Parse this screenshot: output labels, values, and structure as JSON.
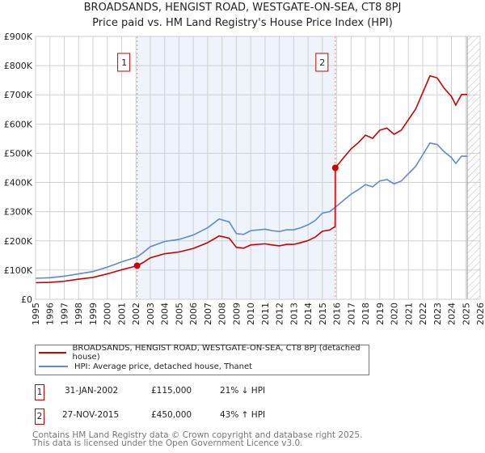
{
  "chart_data": {
    "type": "line",
    "title": "BROADSANDS, HENGIST ROAD, WESTGATE-ON-SEA, CT8 8PJ",
    "subtitle": "Price paid vs. HM Land Registry's House Price Index (HPI)",
    "xlim": [
      1995,
      2026
    ],
    "ylim": [
      0,
      900000
    ],
    "x_ticks": [
      1995,
      1996,
      1997,
      1998,
      1999,
      2000,
      2001,
      2002,
      2003,
      2004,
      2005,
      2006,
      2007,
      2008,
      2009,
      2010,
      2011,
      2012,
      2013,
      2014,
      2015,
      2016,
      2017,
      2018,
      2019,
      2020,
      2021,
      2022,
      2023,
      2024,
      2025,
      2026
    ],
    "y_ticks": [
      {
        "v": 0,
        "label": "£0"
      },
      {
        "v": 100000,
        "label": "£100K"
      },
      {
        "v": 200000,
        "label": "£200K"
      },
      {
        "v": 300000,
        "label": "£300K"
      },
      {
        "v": 400000,
        "label": "£400K"
      },
      {
        "v": 500000,
        "label": "£500K"
      },
      {
        "v": 600000,
        "label": "£600K"
      },
      {
        "v": 700000,
        "label": "£700K"
      },
      {
        "v": 800000,
        "label": "£800K"
      },
      {
        "v": 900000,
        "label": "£900K"
      }
    ],
    "grid": true,
    "shaded_range": [
      2002.08,
      2015.9
    ],
    "hatched_range": [
      2025.1,
      2026
    ],
    "series": [
      {
        "name": "BROADSANDS, HENGIST ROAD, WESTGATE-ON-SEA, CT8 8PJ (detached house)",
        "color": "#cc0000",
        "x": [
          1995,
          1996,
          1997,
          1998,
          1999,
          2000,
          2001,
          2002.08,
          2002.5,
          2003,
          2004,
          2005,
          2006,
          2007,
          2007.8,
          2008.5,
          2009,
          2009.5,
          2010,
          2011,
          2011.5,
          2012,
          2012.5,
          2013,
          2013.5,
          2014,
          2014.5,
          2015,
          2015.5,
          2015.89,
          2015.9,
          2016.5,
          2017,
          2017.5,
          2018,
          2018.5,
          2019,
          2019.5,
          2020,
          2020.5,
          2021,
          2021.5,
          2022,
          2022.5,
          2023,
          2023.5,
          2024,
          2024.3,
          2024.7,
          2025.1
        ],
        "y": [
          57000,
          58000,
          62000,
          69000,
          75000,
          87000,
          101000,
          115000,
          126000,
          142000,
          156000,
          162000,
          174000,
          194000,
          217000,
          209000,
          178000,
          175000,
          186000,
          190000,
          186000,
          183000,
          188000,
          188000,
          194000,
          201000,
          213000,
          233000,
          237000,
          249000,
          450000,
          486000,
          515000,
          536000,
          562000,
          551000,
          579000,
          586000,
          565000,
          579000,
          615000,
          651000,
          708000,
          765000,
          758000,
          722000,
          694000,
          665000,
          701000,
          701000
        ]
      },
      {
        "name": "HPI: Average price, detached house, Thanet",
        "color": "#5b8bd0",
        "x": [
          1995,
          1996,
          1997,
          1998,
          1999,
          2000,
          2001,
          2002.08,
          2002.5,
          2003,
          2004,
          2005,
          2006,
          2007,
          2007.8,
          2008.5,
          2009,
          2009.5,
          2010,
          2011,
          2011.5,
          2012,
          2012.5,
          2013,
          2013.5,
          2014,
          2014.5,
          2015,
          2015.5,
          2015.9,
          2016.5,
          2017,
          2017.5,
          2018,
          2018.5,
          2019,
          2019.5,
          2020,
          2020.5,
          2021,
          2021.5,
          2022,
          2022.5,
          2023,
          2023.5,
          2024,
          2024.3,
          2024.7,
          2025.1
        ],
        "y": [
          72000,
          74000,
          79000,
          87000,
          95000,
          110000,
          128000,
          145000,
          160000,
          180000,
          198000,
          205000,
          220000,
          245000,
          275000,
          265000,
          225000,
          222000,
          235000,
          240000,
          235000,
          232000,
          238000,
          238000,
          245000,
          255000,
          270000,
          295000,
          300000,
          315000,
          340000,
          360000,
          375000,
          393000,
          385000,
          405000,
          410000,
          395000,
          405000,
          430000,
          455000,
          495000,
          535000,
          530000,
          505000,
          485000,
          465000,
          490000,
          490000
        ]
      }
    ],
    "sales": [
      {
        "label": "1",
        "date": "31-JAN-2002",
        "x": 2002.08,
        "price": 115000,
        "price_text": "£115,000",
        "hpi": "21% ↓ HPI"
      },
      {
        "label": "2",
        "date": "27-NOV-2015",
        "x": 2015.9,
        "price": 450000,
        "price_text": "£450,000",
        "hpi": "43% ↑ HPI"
      }
    ],
    "legend": [
      "BROADSANDS, HENGIST ROAD, WESTGATE-ON-SEA, CT8 8PJ (detached house)",
      "HPI: Average price, detached house, Thanet"
    ],
    "legend_position": "below"
  },
  "footer": [
    "Contains HM Land Registry data © Crown copyright and database right 2025.",
    "This data is licensed under the Open Government Licence v3.0."
  ]
}
